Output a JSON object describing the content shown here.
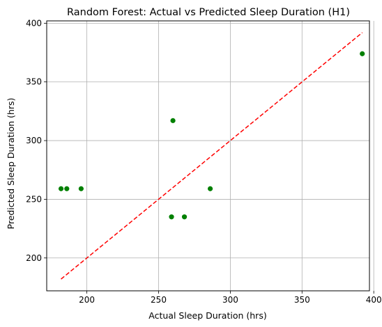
{
  "chart_data": {
    "type": "scatter",
    "title": "Random Forest: Actual vs Predicted Sleep Duration (H1)",
    "xlabel": "Actual Sleep Duration (hrs)",
    "ylabel": "Predicted Sleep Duration (hrs)",
    "xlim": [
      172,
      397
    ],
    "ylim": [
      172,
      402
    ],
    "xticks": [
      200,
      250,
      300,
      350,
      400
    ],
    "yticks": [
      200,
      250,
      300,
      350,
      400
    ],
    "grid": true,
    "series": [
      {
        "color": "#008000",
        "x": [
          182,
          186,
          196,
          259,
          260,
          268,
          286,
          392
        ],
        "y": [
          259,
          259,
          259,
          235,
          317,
          235,
          259,
          374
        ]
      }
    ],
    "reference_line": {
      "x": [
        182,
        392
      ],
      "y": [
        182,
        392
      ],
      "color": "#ff0000",
      "style": "dashed"
    }
  }
}
